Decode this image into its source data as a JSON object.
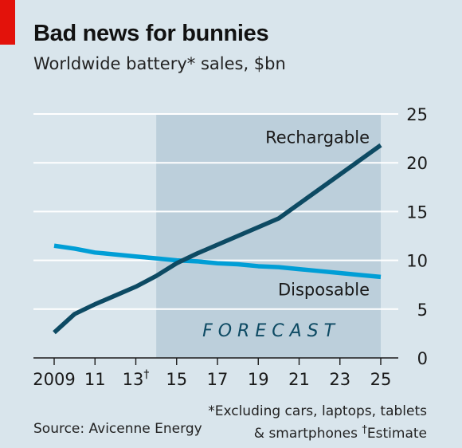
{
  "header": {
    "title": "Bad news for bunnies",
    "subtitle": "Worldwide battery* sales, $bn"
  },
  "chart_data": {
    "type": "line",
    "title": "Bad news for bunnies",
    "subtitle": "Worldwide battery* sales, $bn",
    "xlabel": "",
    "ylabel": "",
    "xlim": [
      2009,
      2025
    ],
    "ylim": [
      0,
      25
    ],
    "x_ticks": [
      {
        "value": 2009,
        "label": "2009",
        "dagger": false
      },
      {
        "value": 2011,
        "label": "11",
        "dagger": false
      },
      {
        "value": 2013,
        "label": "13",
        "dagger": true
      },
      {
        "value": 2015,
        "label": "15",
        "dagger": false
      },
      {
        "value": 2017,
        "label": "17",
        "dagger": false
      },
      {
        "value": 2019,
        "label": "19",
        "dagger": false
      },
      {
        "value": 2021,
        "label": "21",
        "dagger": false
      },
      {
        "value": 2023,
        "label": "23",
        "dagger": false
      },
      {
        "value": 2025,
        "label": "25",
        "dagger": false
      }
    ],
    "y_ticks": [
      0,
      5,
      10,
      15,
      20,
      25
    ],
    "y_axis_side": "right",
    "grid": true,
    "forecast": {
      "label": "F O R E C A S T",
      "start": 2014,
      "end": 2025
    },
    "series": [
      {
        "name": "Rechargable",
        "color": "#0d4a63",
        "x": [
          2009,
          2010,
          2011,
          2012,
          2013,
          2014,
          2015,
          2016,
          2017,
          2018,
          2019,
          2020,
          2021,
          2022,
          2023,
          2024,
          2025
        ],
        "values": [
          2.6,
          4.5,
          5.5,
          6.4,
          7.3,
          8.4,
          9.7,
          10.7,
          11.6,
          12.5,
          13.4,
          14.3,
          15.8,
          17.3,
          18.8,
          20.3,
          21.8
        ]
      },
      {
        "name": "Disposable",
        "color": "#009ed6",
        "x": [
          2009,
          2010,
          2011,
          2012,
          2013,
          2014,
          2015,
          2016,
          2017,
          2018,
          2019,
          2020,
          2021,
          2022,
          2023,
          2024,
          2025
        ],
        "values": [
          11.5,
          11.2,
          10.8,
          10.6,
          10.4,
          10.2,
          10.0,
          9.9,
          9.7,
          9.6,
          9.4,
          9.3,
          9.1,
          8.9,
          8.7,
          8.5,
          8.3
        ]
      }
    ]
  },
  "footer": {
    "footnote_line1": "*Excluding cars, laptops, tablets",
    "footnote_line2a": "& smartphones",
    "dagger": "†",
    "footnote_line2b": "Estimate",
    "source": "Source: Avicenne Energy"
  }
}
